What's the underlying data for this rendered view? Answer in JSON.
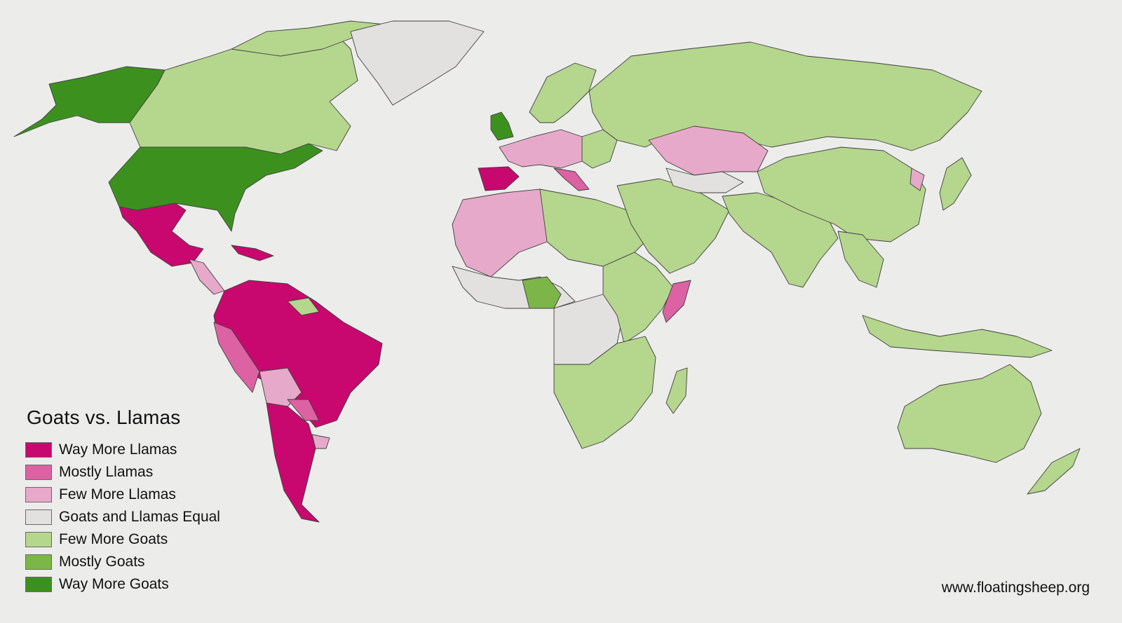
{
  "legend": {
    "title": "Goats vs. Llamas",
    "categories": [
      {
        "key": "way_more_llamas",
        "label": "Way More Llamas",
        "color": "#c8086e"
      },
      {
        "key": "mostly_llamas",
        "label": "Mostly Llamas",
        "color": "#dd62a4"
      },
      {
        "key": "few_more_llamas",
        "label": "Few More Llamas",
        "color": "#e7a9c9"
      },
      {
        "key": "equal",
        "label": "Goats and Llamas Equal",
        "color": "#e3e1df"
      },
      {
        "key": "few_more_goats",
        "label": "Few More Goats",
        "color": "#b5d68d"
      },
      {
        "key": "mostly_goats",
        "label": "Mostly Goats",
        "color": "#7db648"
      },
      {
        "key": "way_more_goats",
        "label": "Way More Goats",
        "color": "#3c911e"
      }
    ]
  },
  "credit": "www.floatingsheep.org",
  "colors": {
    "background": "#ececea",
    "border": "#3f3f3f"
  }
}
